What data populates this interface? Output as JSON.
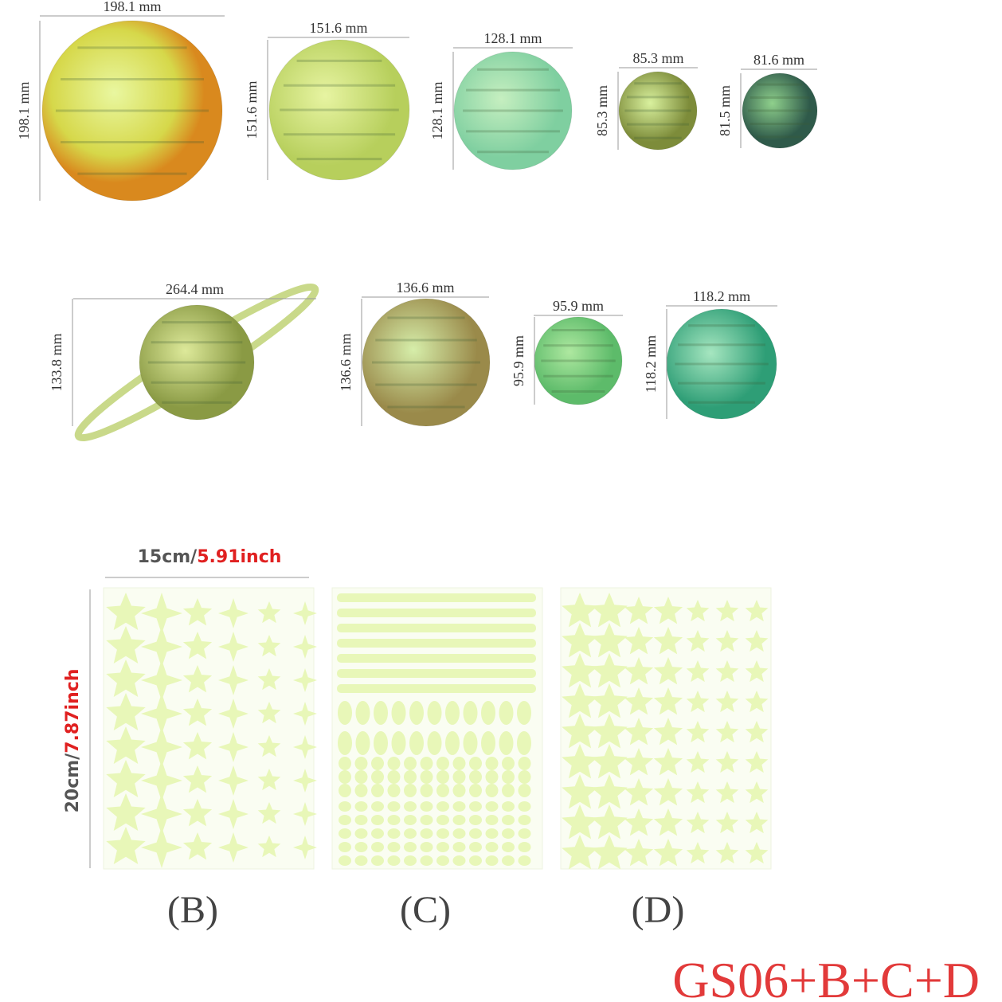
{
  "planets": [
    {
      "width": "198.1 mm",
      "height": "198.1 mm"
    },
    {
      "width": "151.6 mm",
      "height": "151.6 mm"
    },
    {
      "width": "128.1 mm",
      "height": "128.1 mm"
    },
    {
      "width": "85.3 mm",
      "height": "85.3 mm"
    },
    {
      "width": "81.6 mm",
      "height": "81.5 mm"
    },
    {
      "width": "264.4 mm",
      "height": "133.8 mm"
    },
    {
      "width": "136.6 mm",
      "height": "136.6 mm"
    },
    {
      "width": "95.9 mm",
      "height": "95.9 mm"
    },
    {
      "width": "118.2 mm",
      "height": "118.2 mm"
    }
  ],
  "sheet_size": {
    "width_cm": "15cm/",
    "width_inch": "5.91inch",
    "height_cm": "20cm/",
    "height_inch": "7.87inch"
  },
  "sheets": [
    "(B)",
    "(C)",
    "(D)"
  ],
  "product_code": "GS06+B+C+D"
}
